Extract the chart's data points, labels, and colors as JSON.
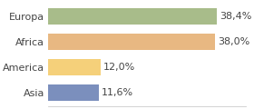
{
  "categories": [
    "Europa",
    "Africa",
    "America",
    "Asia"
  ],
  "values": [
    38.4,
    38.0,
    12.0,
    11.6
  ],
  "labels": [
    "38,4%",
    "38,0%",
    "12,0%",
    "11,6%"
  ],
  "bar_colors": [
    "#a8bc8a",
    "#e8b882",
    "#f5d07a",
    "#7b8fbd"
  ],
  "xlim": [
    0,
    45
  ],
  "background_color": "#ffffff",
  "label_fontsize": 8.0,
  "category_fontsize": 8.0
}
